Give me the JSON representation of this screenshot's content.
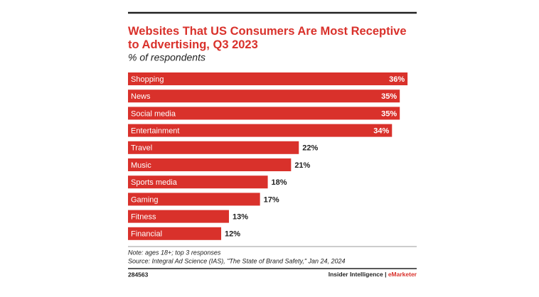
{
  "chart_data": {
    "type": "bar",
    "orientation": "horizontal",
    "title": "Websites That US Consumers Are Most Receptive to Advertising, Q3 2023",
    "subtitle": "% of respondents",
    "categories": [
      "Shopping",
      "News",
      "Social media",
      "Entertainment",
      "Travel",
      "Music",
      "Sports media",
      "Gaming",
      "Fitness",
      "Financial"
    ],
    "values": [
      36,
      35,
      35,
      34,
      22,
      21,
      18,
      17,
      13,
      12
    ],
    "value_labels": [
      "36%",
      "35%",
      "35%",
      "34%",
      "22%",
      "21%",
      "18%",
      "17%",
      "13%",
      "12%"
    ],
    "color": "#d9312b",
    "note": "Note: ages 18+; top 3 responses",
    "source": "Source: Integral Ad Science (IAS), \"The State of Brand Safety,\" Jan 24, 2024",
    "chart_id": "284563",
    "publisher": "Insider Intelligence",
    "brand": "eMarketer"
  }
}
